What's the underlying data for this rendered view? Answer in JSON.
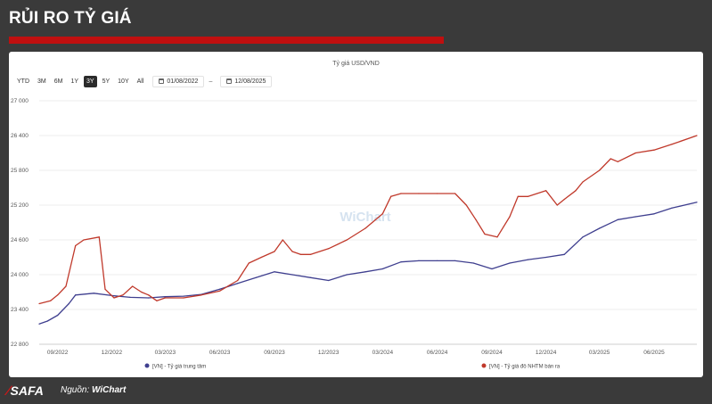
{
  "header": {
    "title": "RỦI RO TỶ GIÁ"
  },
  "toolbar": {
    "ranges": [
      "YTD",
      "3M",
      "6M",
      "1Y",
      "3Y",
      "5Y",
      "10Y",
      "All"
    ],
    "active_range": "3Y",
    "date_from": "01/08/2022",
    "date_to": "12/08/2025"
  },
  "footer": {
    "logo": "SAFA",
    "source_label": "Nguồn:",
    "source_name": "WiChart"
  },
  "watermark": "WiChart",
  "colors": {
    "series1": "#3f3f8f",
    "series2": "#c0392b",
    "accent": "#c00f0f"
  },
  "chart_data": {
    "type": "line",
    "title": "Tỷ giá USD/VND",
    "y_ticks": [
      22800,
      23400,
      24000,
      24600,
      25200,
      25800,
      26400,
      27000
    ],
    "y_tick_labels": [
      "22 800",
      "23 400",
      "24 000",
      "24 600",
      "25 200",
      "25 800",
      "26 400",
      "27 000"
    ],
    "ylim": [
      22800,
      27000
    ],
    "x_tick_labels": [
      "09/2022",
      "12/2022",
      "03/2023",
      "06/2023",
      "09/2023",
      "12/2023",
      "03/2024",
      "06/2024",
      "09/2024",
      "12/2024",
      "03/2025",
      "06/2025"
    ],
    "x_ticks": [
      "2022-09-01",
      "2022-12-01",
      "2023-03-01",
      "2023-06-01",
      "2023-09-01",
      "2023-12-01",
      "2024-03-01",
      "2024-06-01",
      "2024-09-01",
      "2024-12-01",
      "2025-03-01",
      "2025-06-01"
    ],
    "xlim": [
      "2022-08-01",
      "2025-08-12"
    ],
    "legend_position": "bottom",
    "grid": "horizontal",
    "series": [
      {
        "name": "[VN] - Tỷ giá trung tâm",
        "color": "#3f3f8f",
        "points": [
          [
            "2022-08-01",
            23150
          ],
          [
            "2022-08-15",
            23200
          ],
          [
            "2022-09-01",
            23300
          ],
          [
            "2022-09-20",
            23500
          ],
          [
            "2022-10-01",
            23650
          ],
          [
            "2022-11-01",
            23680
          ],
          [
            "2022-12-01",
            23640
          ],
          [
            "2023-01-01",
            23610
          ],
          [
            "2023-02-01",
            23600
          ],
          [
            "2023-03-01",
            23620
          ],
          [
            "2023-04-01",
            23630
          ],
          [
            "2023-05-01",
            23660
          ],
          [
            "2023-06-01",
            23750
          ],
          [
            "2023-07-01",
            23850
          ],
          [
            "2023-08-01",
            23950
          ],
          [
            "2023-09-01",
            24050
          ],
          [
            "2023-10-01",
            24000
          ],
          [
            "2023-11-01",
            23950
          ],
          [
            "2023-12-01",
            23900
          ],
          [
            "2024-01-01",
            24000
          ],
          [
            "2024-02-01",
            24050
          ],
          [
            "2024-03-01",
            24100
          ],
          [
            "2024-04-01",
            24220
          ],
          [
            "2024-05-01",
            24240
          ],
          [
            "2024-06-01",
            24240
          ],
          [
            "2024-07-01",
            24240
          ],
          [
            "2024-08-01",
            24200
          ],
          [
            "2024-09-01",
            24100
          ],
          [
            "2024-10-01",
            24200
          ],
          [
            "2024-11-01",
            24260
          ],
          [
            "2024-12-01",
            24300
          ],
          [
            "2025-01-01",
            24350
          ],
          [
            "2025-02-01",
            24650
          ],
          [
            "2025-03-01",
            24800
          ],
          [
            "2025-04-01",
            24950
          ],
          [
            "2025-05-01",
            25000
          ],
          [
            "2025-06-01",
            25050
          ],
          [
            "2025-07-01",
            25150
          ],
          [
            "2025-08-12",
            25250
          ]
        ]
      },
      {
        "name": "[VN] - Tỷ giá đô NHTM bán ra",
        "color": "#c0392b",
        "points": [
          [
            "2022-08-01",
            23500
          ],
          [
            "2022-08-20",
            23550
          ],
          [
            "2022-09-01",
            23650
          ],
          [
            "2022-09-15",
            23800
          ],
          [
            "2022-10-01",
            24500
          ],
          [
            "2022-10-15",
            24600
          ],
          [
            "2022-11-10",
            24650
          ],
          [
            "2022-11-20",
            23750
          ],
          [
            "2022-12-05",
            23600
          ],
          [
            "2022-12-20",
            23650
          ],
          [
            "2023-01-05",
            23800
          ],
          [
            "2023-01-20",
            23700
          ],
          [
            "2023-02-01",
            23650
          ],
          [
            "2023-02-15",
            23550
          ],
          [
            "2023-03-01",
            23600
          ],
          [
            "2023-04-01",
            23600
          ],
          [
            "2023-05-01",
            23650
          ],
          [
            "2023-06-01",
            23720
          ],
          [
            "2023-07-01",
            23900
          ],
          [
            "2023-07-20",
            24200
          ],
          [
            "2023-08-10",
            24300
          ],
          [
            "2023-09-01",
            24400
          ],
          [
            "2023-09-15",
            24600
          ],
          [
            "2023-10-01",
            24400
          ],
          [
            "2023-10-15",
            24350
          ],
          [
            "2023-11-01",
            24350
          ],
          [
            "2023-12-01",
            24450
          ],
          [
            "2024-01-01",
            24600
          ],
          [
            "2024-02-01",
            24800
          ],
          [
            "2024-03-01",
            25050
          ],
          [
            "2024-03-15",
            25350
          ],
          [
            "2024-04-01",
            25400
          ],
          [
            "2024-05-01",
            25400
          ],
          [
            "2024-06-01",
            25400
          ],
          [
            "2024-07-01",
            25400
          ],
          [
            "2024-07-20",
            25200
          ],
          [
            "2024-08-05",
            24950
          ],
          [
            "2024-08-20",
            24700
          ],
          [
            "2024-09-10",
            24650
          ],
          [
            "2024-10-01",
            25000
          ],
          [
            "2024-10-15",
            25350
          ],
          [
            "2024-11-01",
            25350
          ],
          [
            "2024-12-01",
            25450
          ],
          [
            "2024-12-20",
            25200
          ],
          [
            "2025-01-01",
            25300
          ],
          [
            "2025-01-20",
            25450
          ],
          [
            "2025-02-01",
            25600
          ],
          [
            "2025-03-01",
            25800
          ],
          [
            "2025-03-20",
            26000
          ],
          [
            "2025-04-01",
            25950
          ],
          [
            "2025-05-01",
            26100
          ],
          [
            "2025-06-01",
            26150
          ],
          [
            "2025-07-01",
            26250
          ],
          [
            "2025-08-12",
            26400
          ]
        ]
      }
    ]
  }
}
